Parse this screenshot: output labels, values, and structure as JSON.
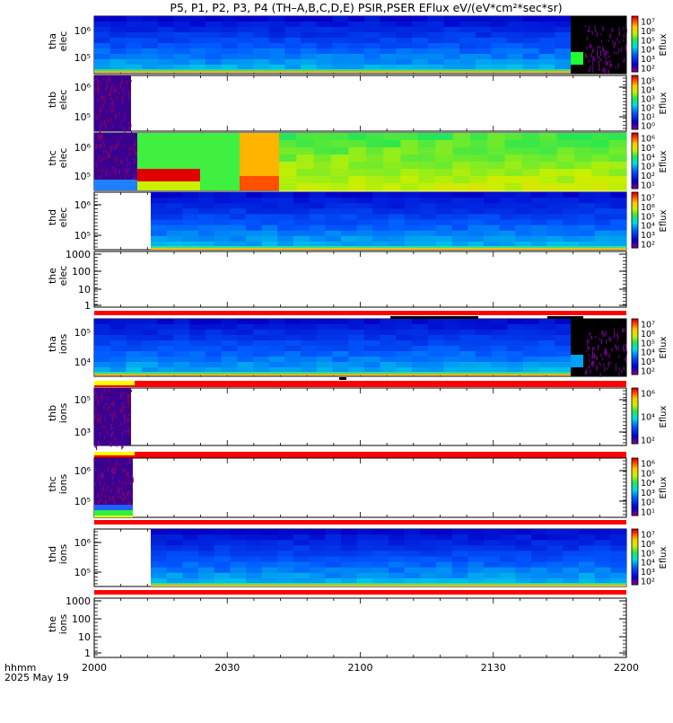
{
  "title": "P5, P1, P2, P3, P4 (TH–A,B,C,D,E) PSIR,PSER EFlux eV/(eV*cm²*sec*sr)",
  "x_axis": {
    "label_line1": "hhmm",
    "label_line2": "2025 May 19",
    "ticks": [
      "2000",
      "2030",
      "2100",
      "2130",
      "2200"
    ]
  },
  "colorbar_label": "Eflux",
  "chart_data": [
    {
      "type": "heatmap",
      "panel": "tha elec",
      "ylabel": [
        "tha",
        "elec"
      ],
      "yticks": [
        "10⁵",
        "10⁶"
      ],
      "colorbar_ticks": [
        "10⁷",
        "10⁶",
        "10⁵",
        "10⁴",
        "10³",
        "10²"
      ],
      "empty": false
    },
    {
      "type": "heatmap",
      "panel": "thb elec",
      "ylabel": [
        "thb",
        "elec"
      ],
      "yticks": [
        "10⁵",
        "10⁶"
      ],
      "colorbar_ticks": [
        "10⁵",
        "10⁴",
        "10³",
        "10²",
        "10¹",
        "10⁰"
      ],
      "empty": false
    },
    {
      "type": "heatmap",
      "panel": "thc elec",
      "ylabel": [
        "thc",
        "elec"
      ],
      "yticks": [
        "10⁵",
        "10⁶"
      ],
      "colorbar_ticks": [
        "10⁶",
        "10⁵",
        "10⁴",
        "10³",
        "10²",
        "10¹"
      ],
      "empty": false
    },
    {
      "type": "heatmap",
      "panel": "thd elec",
      "ylabel": [
        "thd",
        "elec"
      ],
      "yticks": [
        "10⁵",
        "10⁶"
      ],
      "colorbar_ticks": [
        "10⁷",
        "10⁶",
        "10⁵",
        "10⁴",
        "10³",
        "10²"
      ],
      "empty": false
    },
    {
      "type": "heatmap",
      "panel": "the elec",
      "ylabel": [
        "the",
        "elec"
      ],
      "yticks": [
        "1",
        "10",
        "100",
        "1000"
      ],
      "colorbar_ticks": [],
      "empty": true
    },
    {
      "type": "heatmap",
      "panel": "tha ions",
      "ylabel": [
        "tha",
        "ions"
      ],
      "yticks": [
        "10⁴",
        "10⁵"
      ],
      "colorbar_ticks": [
        "10⁷",
        "10⁶",
        "10⁵",
        "10⁴",
        "10³",
        "10²"
      ],
      "empty": false
    },
    {
      "type": "heatmap",
      "panel": "thb ions",
      "ylabel": [
        "thb",
        "ions"
      ],
      "yticks": [
        "10³",
        "10⁵"
      ],
      "colorbar_ticks": [
        "10⁶",
        "10⁴",
        "10²"
      ],
      "empty": false
    },
    {
      "type": "heatmap",
      "panel": "thc ions",
      "ylabel": [
        "thc",
        "ions"
      ],
      "yticks": [
        "10⁵",
        "10⁶"
      ],
      "colorbar_ticks": [
        "10⁶",
        "10⁵",
        "10⁴",
        "10³",
        "10²",
        "10¹"
      ],
      "empty": false
    },
    {
      "type": "heatmap",
      "panel": "thd ions",
      "ylabel": [
        "thd",
        "ions"
      ],
      "yticks": [
        "10⁵",
        "10⁶"
      ],
      "colorbar_ticks": [
        "10⁷",
        "10⁶",
        "10⁵",
        "10⁴",
        "10³",
        "10²"
      ],
      "empty": false
    },
    {
      "type": "heatmap",
      "panel": "the ions",
      "ylabel": [
        "the",
        "ions"
      ],
      "yticks": [
        "1",
        "10",
        "100",
        "1000"
      ],
      "colorbar_ticks": [],
      "empty": true
    }
  ]
}
